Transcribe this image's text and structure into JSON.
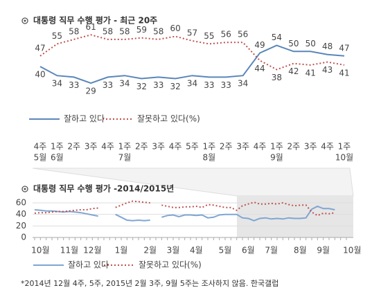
{
  "chart_data": [
    {
      "type": "line",
      "title": "대통령 직무 수행 평가 - 최근 20주",
      "categories": [
        "4주",
        "1주",
        "2주",
        "3주",
        "4주",
        "1주",
        "2주",
        "3주",
        "4주",
        "5주",
        "1주",
        "2주",
        "3주",
        "4주",
        "1주",
        "2주",
        "3주",
        "4주",
        "1주"
      ],
      "month_labels": [
        "5월",
        "6월",
        null,
        null,
        null,
        "7월",
        null,
        null,
        null,
        null,
        "8월",
        null,
        null,
        null,
        "9월",
        null,
        null,
        null,
        "10월"
      ],
      "series": [
        {
          "name": "잘하고 있다",
          "color": "#5a86b9",
          "line_style": "solid",
          "values": [
            40,
            34,
            33,
            29,
            33,
            34,
            32,
            33,
            32,
            34,
            33,
            33,
            34,
            49,
            54,
            50,
            50,
            48,
            47
          ]
        },
        {
          "name": "잘못하고 있다(%)",
          "color": "#c0504d",
          "line_style": "dotted",
          "values": [
            47,
            55,
            58,
            61,
            58,
            58,
            59,
            58,
            60,
            57,
            55,
            56,
            56,
            44,
            38,
            42,
            41,
            43,
            41
          ]
        }
      ],
      "ylim": [
        25,
        65
      ],
      "data_labels": true
    },
    {
      "type": "line",
      "title": "대통령 직무 수행 평가 -2014/2015년",
      "categories": [
        "10월",
        null,
        null,
        null,
        null,
        "11월",
        null,
        null,
        null,
        "12월",
        null,
        null,
        null,
        null,
        "1월",
        null,
        null,
        null,
        null,
        "2월",
        null,
        null,
        null,
        "3월",
        null,
        null,
        null,
        "4월",
        null,
        null,
        null,
        null,
        "5월",
        null,
        null,
        null,
        "6월",
        null,
        null,
        null,
        "7월",
        null,
        null,
        null,
        null,
        "8월",
        null,
        null,
        null,
        "9월",
        null,
        null,
        null,
        null,
        "10월"
      ],
      "series": [
        {
          "name": "잘하고 있다",
          "color": "#7ea6d3",
          "line_style": "solid",
          "values": [
            48,
            47,
            46,
            46,
            45,
            44,
            45,
            44,
            43,
            41,
            39,
            37,
            null,
            null,
            40,
            35,
            30,
            29,
            30,
            29,
            30,
            null,
            35,
            38,
            39,
            36,
            39,
            39,
            38,
            39,
            34,
            35,
            39,
            40,
            40,
            40,
            34,
            33,
            29,
            33,
            34,
            32,
            33,
            32,
            34,
            33,
            33,
            34,
            49,
            54,
            50,
            50,
            48,
            null,
            47
          ]
        },
        {
          "name": "잘못하고 있다(%)",
          "color": "#c0504d",
          "line_style": "dotted",
          "values": [
            42,
            43,
            43,
            44,
            45,
            45,
            46,
            47,
            48,
            48,
            50,
            51,
            null,
            null,
            52,
            56,
            60,
            63,
            62,
            61,
            60,
            null,
            56,
            54,
            52,
            52,
            53,
            53,
            54,
            52,
            57,
            56,
            54,
            52,
            52,
            47,
            55,
            58,
            61,
            58,
            58,
            59,
            58,
            60,
            57,
            55,
            56,
            56,
            44,
            38,
            42,
            41,
            43,
            null,
            41
          ]
        }
      ],
      "ylim": [
        0,
        72
      ],
      "yticks": [
        0,
        20,
        40,
        60
      ],
      "grid": true
    }
  ],
  "footnote": "*2014년 12월 4주, 5주, 2015년 2월 3주, 9월 5주는 조사하지 않음. 한국갤럽"
}
